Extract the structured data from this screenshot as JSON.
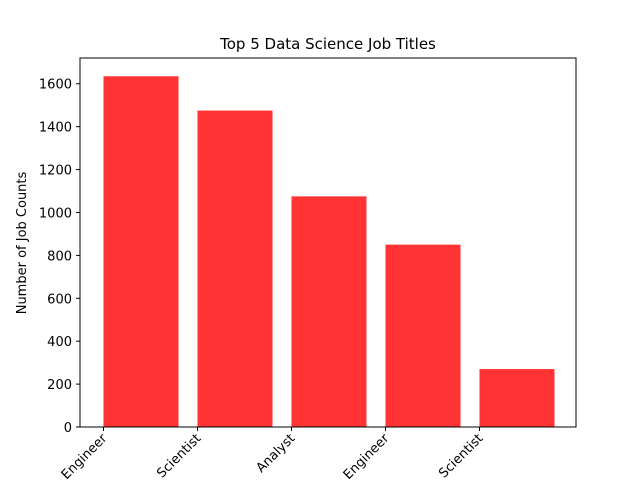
{
  "chart_data": {
    "type": "bar",
    "title": "Top 5 Data Science Job Titles",
    "xlabel": "",
    "ylabel": "Number of Job Counts",
    "categories": [
      "Engineer",
      "Scientist",
      "Analyst",
      "Engineer",
      "Scientist"
    ],
    "values": [
      1635,
      1475,
      1075,
      850,
      270
    ],
    "ylim": [
      0,
      1720
    ],
    "yticks": [
      0,
      200,
      400,
      600,
      800,
      1000,
      1200,
      1400,
      1600
    ],
    "bar_color": "#ff3333",
    "grid": false,
    "legend": "none"
  }
}
